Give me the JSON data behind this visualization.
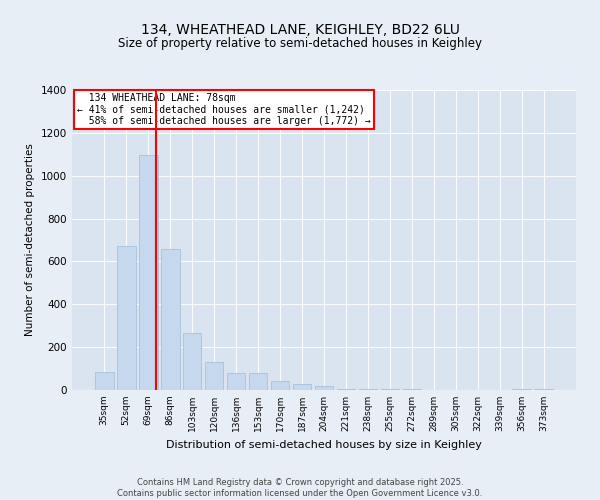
{
  "title1": "134, WHEATHEAD LANE, KEIGHLEY, BD22 6LU",
  "title2": "Size of property relative to semi-detached houses in Keighley",
  "xlabel": "Distribution of semi-detached houses by size in Keighley",
  "ylabel": "Number of semi-detached properties",
  "categories": [
    "35sqm",
    "52sqm",
    "69sqm",
    "86sqm",
    "103sqm",
    "120sqm",
    "136sqm",
    "153sqm",
    "170sqm",
    "187sqm",
    "204sqm",
    "221sqm",
    "238sqm",
    "255sqm",
    "272sqm",
    "289sqm",
    "305sqm",
    "322sqm",
    "339sqm",
    "356sqm",
    "373sqm"
  ],
  "values": [
    85,
    670,
    1095,
    660,
    265,
    130,
    80,
    80,
    40,
    28,
    20,
    5,
    5,
    5,
    3,
    2,
    2,
    2,
    2,
    5,
    5
  ],
  "bar_color": "#c5d8ee",
  "bar_edge_color": "#9dbcd8",
  "property_label": "134 WHEATHEAD LANE: 78sqm",
  "pct_smaller": 41,
  "n_smaller": 1242,
  "pct_larger": 58,
  "n_larger": 1772,
  "vline_x_index": 2.35,
  "ylim": [
    0,
    1400
  ],
  "yticks": [
    0,
    200,
    400,
    600,
    800,
    1000,
    1200,
    1400
  ],
  "background_color": "#e8eef5",
  "plot_bg_color": "#dae4f0",
  "footer1": "Contains HM Land Registry data © Crown copyright and database right 2025.",
  "footer2": "Contains public sector information licensed under the Open Government Licence v3.0."
}
